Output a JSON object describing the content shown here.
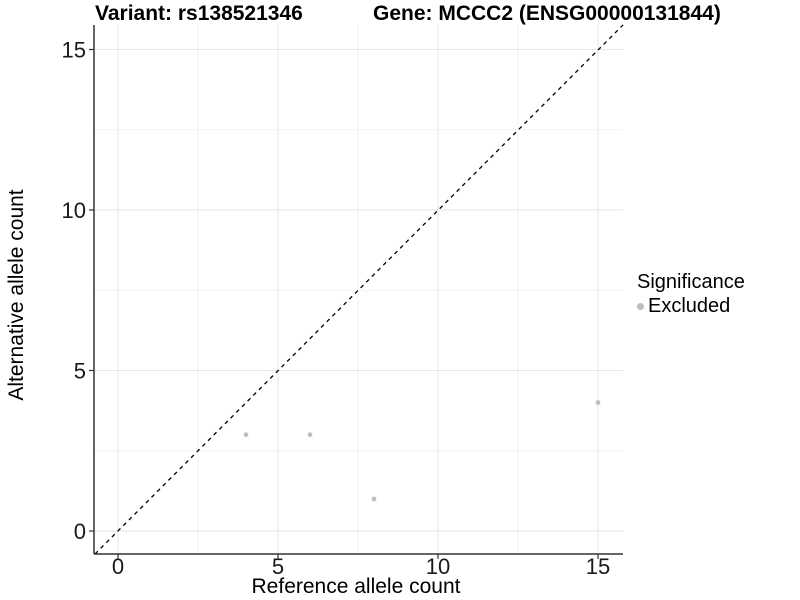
{
  "chart_data": {
    "type": "scatter",
    "titles": {
      "variant": "Variant: rs138521346",
      "gene": "Gene: MCCC2 (ENSG00000131844)"
    },
    "xlabel": "Reference allele count",
    "ylabel": "Alternative allele count",
    "x_ticks": [
      0,
      5,
      10,
      15
    ],
    "y_ticks": [
      0,
      5,
      10,
      15
    ],
    "x_minor_ticks": [
      2.5,
      7.5,
      12.5
    ],
    "y_minor_ticks": [
      2.5,
      7.5,
      12.5
    ],
    "xlim": [
      -0.75,
      15.78
    ],
    "ylim": [
      -0.72,
      15.78
    ],
    "grid": true,
    "reference_line": {
      "type": "identity",
      "style": "dashed"
    },
    "series": [
      {
        "name": "Excluded",
        "color": "#bdbdbd",
        "points": [
          [
            4,
            3
          ],
          [
            6,
            3
          ],
          [
            8,
            1
          ],
          [
            15,
            4
          ]
        ]
      }
    ],
    "legend": {
      "title": "Significance",
      "position": "right",
      "entries": [
        {
          "label": "Excluded",
          "color": "#bdbdbd",
          "marker": "circle-icon"
        }
      ]
    }
  },
  "colors": {
    "background": "#ffffff",
    "grid_major": "#e6e6e6",
    "grid_minor": "#f2f2f2",
    "axis_line": "#333333",
    "tick_mark": "#333333",
    "tick_label": "#1a1a1a",
    "title": "#000000",
    "reference_line": "#000000"
  }
}
